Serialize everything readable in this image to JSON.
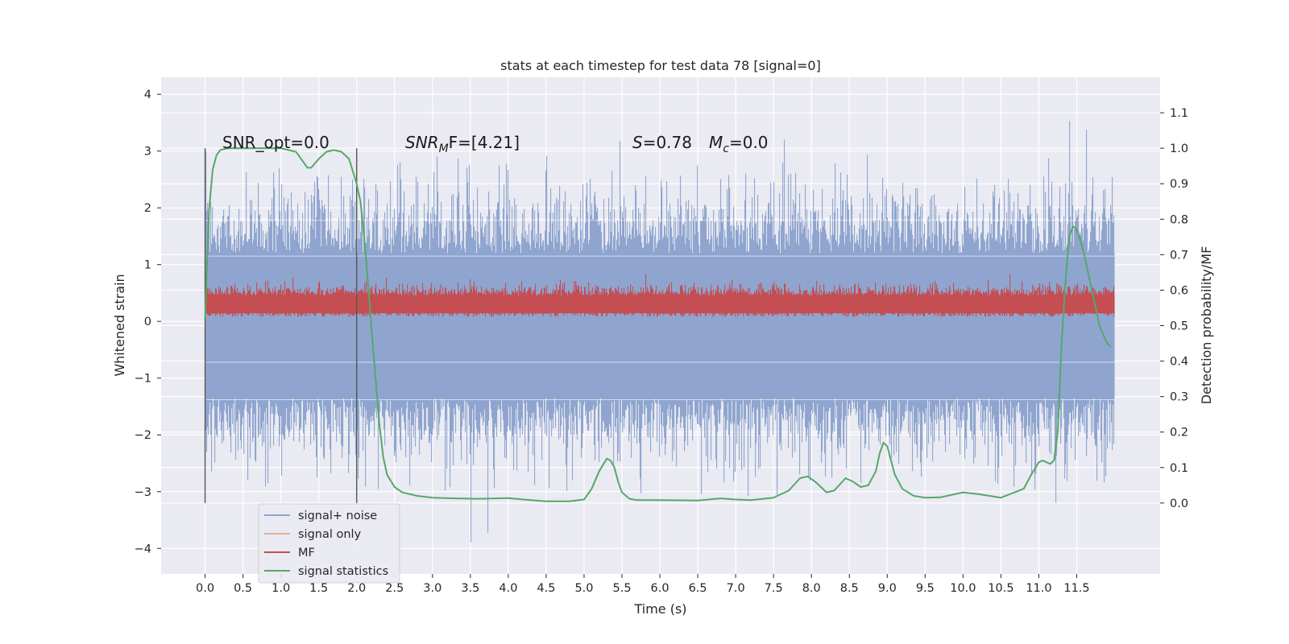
{
  "chart_data": {
    "type": "line",
    "title": "stats at each timestep for test data 78 [signal=0]",
    "xlabel": "Time (s)",
    "ylabel_left": "Whitened strain",
    "ylabel_right": "Detection probability/MF",
    "xlim": [
      -0.58,
      12.6
    ],
    "ylim_left": [
      -4.45,
      4.3
    ],
    "ylim_right": [
      -0.2,
      1.2
    ],
    "grid": true,
    "x_ticks": [
      "0.0",
      "0.5",
      "1.0",
      "1.5",
      "2.0",
      "2.5",
      "3.0",
      "3.5",
      "4.0",
      "4.5",
      "5.0",
      "5.5",
      "6.0",
      "6.5",
      "7.0",
      "7.5",
      "8.0",
      "8.5",
      "9.0",
      "9.5",
      "10.0",
      "10.5",
      "11.0",
      "11.5"
    ],
    "y_ticks_left": [
      "−4",
      "−3",
      "−2",
      "−1",
      "0",
      "1",
      "2",
      "3",
      "4"
    ],
    "y_ticks_right": [
      "0.0",
      "0.1",
      "0.2",
      "0.3",
      "0.4",
      "0.5",
      "0.6",
      "0.7",
      "0.8",
      "0.9",
      "1.0",
      "1.1"
    ],
    "annotations": {
      "snr_opt": "SNR_opt=0.0",
      "snr_mf_base": "SNR",
      "snr_mf_sub": "M",
      "snr_mf_rest": "F=[4.21]",
      "s_label": "S",
      "s_value": "=0.78",
      "mc_label": "M",
      "mc_sub": "c",
      "mc_value": "=0.0"
    },
    "vlines": [
      0.0,
      2.0
    ],
    "legend": {
      "placement": "lower-left",
      "entries": [
        {
          "label": "signal+ noise",
          "color": "#8fa5cf"
        },
        {
          "label": "signal only",
          "color": "#e5ae98"
        },
        {
          "label": "MF",
          "color": "#c44e52"
        },
        {
          "label": "signal statistics",
          "color": "#55a868"
        }
      ]
    },
    "series": [
      {
        "name": "signal+ noise",
        "axis": "left",
        "color": "#8fa5cf",
        "x_range": [
          0.0,
          12.0
        ],
        "envelope_typical": [
          -1.35,
          1.2
        ],
        "spike_range": [
          -4.1,
          3.9
        ]
      },
      {
        "name": "MF",
        "axis": "right",
        "color": "#c44e52",
        "x_range": [
          0.0,
          12.0
        ],
        "range": [
          0.52,
          0.64
        ]
      },
      {
        "name": "signal statistics",
        "axis": "right",
        "color": "#55a868",
        "x": [
          0.0,
          0.05,
          0.1,
          0.15,
          0.2,
          0.3,
          0.4,
          0.6,
          0.8,
          1.0,
          1.2,
          1.3,
          1.35,
          1.4,
          1.5,
          1.6,
          1.7,
          1.8,
          1.9,
          2.0,
          2.05,
          2.1,
          2.15,
          2.2,
          2.25,
          2.3,
          2.35,
          2.4,
          2.5,
          2.6,
          2.8,
          3.0,
          3.3,
          3.6,
          4.0,
          4.2,
          4.5,
          4.8,
          5.0,
          5.1,
          5.2,
          5.3,
          5.35,
          5.4,
          5.45,
          5.5,
          5.6,
          5.7,
          6.0,
          6.5,
          6.8,
          7.0,
          7.2,
          7.5,
          7.7,
          7.85,
          7.95,
          8.05,
          8.2,
          8.3,
          8.45,
          8.55,
          8.65,
          8.75,
          8.85,
          8.9,
          8.95,
          9.0,
          9.1,
          9.2,
          9.35,
          9.5,
          9.7,
          10.0,
          10.2,
          10.5,
          10.8,
          10.9,
          11.0,
          11.05,
          11.1,
          11.15,
          11.2,
          11.25,
          11.3,
          11.35,
          11.4,
          11.45,
          11.5,
          11.55,
          11.6,
          11.7,
          11.8,
          11.9,
          11.95
        ],
        "y": [
          0.52,
          0.82,
          0.94,
          0.98,
          0.995,
          1.0,
          1.0,
          1.0,
          1.0,
          1.0,
          0.99,
          0.96,
          0.945,
          0.945,
          0.97,
          0.99,
          0.995,
          0.99,
          0.97,
          0.9,
          0.85,
          0.75,
          0.62,
          0.48,
          0.35,
          0.22,
          0.13,
          0.08,
          0.045,
          0.03,
          0.02,
          0.015,
          0.013,
          0.012,
          0.014,
          0.01,
          0.005,
          0.005,
          0.01,
          0.04,
          0.09,
          0.125,
          0.12,
          0.1,
          0.06,
          0.03,
          0.012,
          0.008,
          0.008,
          0.007,
          0.013,
          0.01,
          0.008,
          0.015,
          0.035,
          0.07,
          0.075,
          0.06,
          0.03,
          0.035,
          0.07,
          0.06,
          0.045,
          0.05,
          0.09,
          0.14,
          0.17,
          0.16,
          0.08,
          0.04,
          0.02,
          0.015,
          0.016,
          0.03,
          0.025,
          0.015,
          0.04,
          0.08,
          0.115,
          0.12,
          0.115,
          0.11,
          0.12,
          0.2,
          0.45,
          0.62,
          0.75,
          0.78,
          0.77,
          0.74,
          0.7,
          0.6,
          0.5,
          0.45,
          0.44
        ]
      }
    ]
  }
}
